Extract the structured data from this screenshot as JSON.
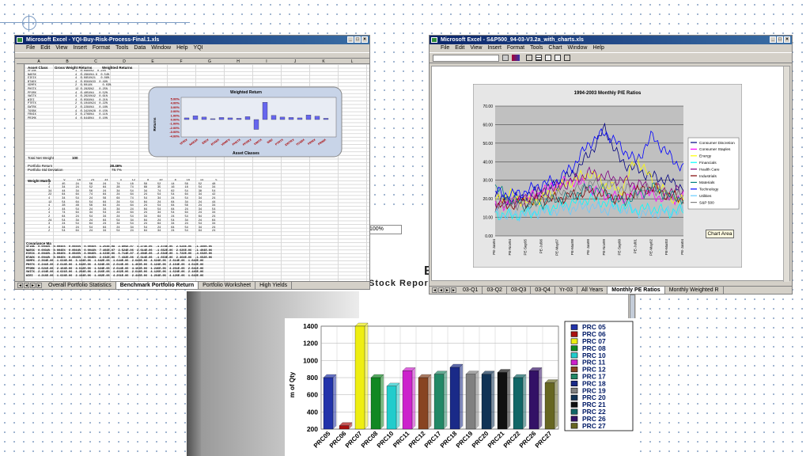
{
  "left_window": {
    "title": "Microsoft Excel - YQI-Buy-Risk-Process-Final.1.xls",
    "menu": [
      "File",
      "Edit",
      "View",
      "Insert",
      "Format",
      "Tools",
      "Data",
      "Window",
      "Help",
      "YQI"
    ],
    "cell_ref": "A",
    "col_headers": [
      "A",
      "B",
      "C",
      "D",
      "E",
      "F",
      "G",
      "H",
      "I",
      "J",
      "K",
      "L"
    ],
    "labels": {
      "asset_class": "Asset Class",
      "gross_weight": "Gross Weight Returns",
      "weighted_returns": "Weighted Returns",
      "total_net_weight": "Total Net Weight",
      "portfolio_return": "Portfolio Return",
      "portfolio_std": "Portfolio Std Deviation",
      "weight_matrix": "Weight Matrix",
      "covariance": "Covariance Ma",
      "total_weight_value": "100",
      "portfolio_return_value": "28.46%",
      "portfolio_std_value": "78.7%"
    },
    "asset_rows": [
      "VFINX",
      "NAESX",
      "EIEIX",
      "BTAEX",
      "VDMFX",
      "PHSTX",
      "PFORX",
      "VWITX",
      "WIEI",
      "PTRTX",
      "EWTRX",
      "TGSBX",
      "FRNIX",
      "PRIMX"
    ],
    "inner_chart": {
      "title": "Weighted Return",
      "xlabel": "Asset Classes",
      "ylabel": "Returns",
      "yticks": [
        "5.00%",
        "4.00%",
        "3.00%",
        "2.00%",
        "1.00%",
        "0.00%",
        "-1.00%",
        "-2.00%",
        "-3.00%",
        "-4.00%"
      ]
    },
    "tabs": [
      "Overall Portfolio Statistics",
      "Benchmark Portfolio Return",
      "Portfolio Worksheet",
      "High Yields"
    ],
    "active_tab": "Benchmark Portfolio Return"
  },
  "right_window": {
    "title": "Microsoft Excel - S&P500_94-03-V3.2a_with_charts.xls",
    "menu": [
      "File",
      "Edit",
      "View",
      "Insert",
      "Format",
      "Tools",
      "Chart",
      "Window",
      "Help"
    ],
    "zoom": "100%",
    "chart_area_button": "Chart Area",
    "tabs": [
      "03-Q1",
      "03-Q2",
      "03-Q3",
      "03-Q4",
      "Yr-03",
      "All Years",
      "Monthly PE Ratios",
      "Monthly Weighted R"
    ],
    "active_tab": "Monthly PE Ratios"
  },
  "background_text": {
    "stock_report": "Stock Report",
    "big_letter": "E"
  },
  "chart_data": [
    {
      "type": "line",
      "title": "1994-2003 Monthly P/E Ratios",
      "yticks": [
        "70.00",
        "60.00",
        "50.00",
        "40.00",
        "30.00",
        "20.00",
        "10.00",
        "0.00"
      ],
      "ylim": [
        0,
        70
      ],
      "x": [
        "PE-Jan94",
        "PE-Nov94",
        "PE-Sep95",
        "PE-Jul96",
        "PE-May97",
        "PE-Mar98",
        "PE-Jan99",
        "PE-Nov99",
        "PE-Sep00",
        "PE-Jul01",
        "PE-May02",
        "PE-Mar03",
        "PE-Jan04"
      ],
      "series": [
        {
          "name": "Consumer Discretion",
          "color": "#000080",
          "values": [
            21,
            19,
            22,
            24,
            28,
            34,
            44,
            58,
            40,
            36,
            32,
            30,
            26
          ]
        },
        {
          "name": "Consumer Staples",
          "color": "#ff00ff",
          "values": [
            16,
            18,
            20,
            24,
            28,
            30,
            26,
            22,
            20,
            24,
            22,
            20,
            21
          ]
        },
        {
          "name": "Energy",
          "color": "#ffff00",
          "values": [
            20,
            22,
            18,
            20,
            26,
            30,
            34,
            28,
            24,
            42,
            30,
            22,
            18
          ]
        },
        {
          "name": "Financials",
          "color": "#00ffff",
          "values": [
            12,
            11,
            12,
            14,
            16,
            18,
            20,
            18,
            16,
            14,
            15,
            13,
            14
          ]
        },
        {
          "name": "Health Care",
          "color": "#800080",
          "values": [
            18,
            18,
            20,
            24,
            26,
            30,
            34,
            32,
            30,
            28,
            26,
            24,
            24
          ]
        },
        {
          "name": "Industrials",
          "color": "#800000",
          "values": [
            16,
            17,
            18,
            20,
            20,
            22,
            24,
            22,
            20,
            24,
            26,
            22,
            20
          ]
        },
        {
          "name": "Materials",
          "color": "#008080",
          "values": [
            26,
            20,
            16,
            18,
            20,
            22,
            26,
            24,
            18,
            22,
            26,
            22,
            20
          ]
        },
        {
          "name": "Technology",
          "color": "#0000ff",
          "values": [
            24,
            22,
            24,
            28,
            30,
            38,
            50,
            56,
            48,
            40,
            54,
            44,
            36
          ]
        },
        {
          "name": "Utilities",
          "color": "#66ccff",
          "values": [
            12,
            11,
            12,
            13,
            14,
            15,
            16,
            14,
            15,
            13,
            12,
            13,
            14
          ]
        },
        {
          "name": "S&P 500",
          "color": "#808080",
          "values": [
            18,
            17,
            18,
            20,
            22,
            24,
            28,
            28,
            26,
            24,
            26,
            22,
            21
          ]
        }
      ],
      "legend": "right"
    },
    {
      "type": "bar",
      "title": "",
      "ylabel": "m of Qty",
      "ylim": [
        200,
        1400
      ],
      "yticks": [
        "1400",
        "1200",
        "1000",
        "800",
        "600",
        "400",
        "200"
      ],
      "categories": [
        "PRC05",
        "PRC06",
        "PRC07",
        "PRC08",
        "PRC10",
        "PRC11",
        "PRC12",
        "PRC17",
        "PRC18",
        "PRC19",
        "PRC20",
        "PRC21",
        "PRC22",
        "PRC26",
        "PRC27"
      ],
      "values": [
        800,
        240,
        1400,
        800,
        700,
        880,
        800,
        840,
        920,
        840,
        840,
        860,
        800,
        880,
        740
      ],
      "colors": [
        "#2233aa",
        "#aa1111",
        "#eeee11",
        "#118822",
        "#22cccc",
        "#cc22cc",
        "#884422",
        "#228866",
        "#1a2a88",
        "#808080",
        "#113355",
        "#111111",
        "#116666",
        "#331166",
        "#666622"
      ],
      "legend": [
        "PRC 05",
        "PRC 06",
        "PRC 07",
        "PRC 08",
        "PRC 10",
        "PRC 11",
        "PRC 12",
        "PRC 17",
        "PRC 18",
        "PRC 19",
        "PRC 20",
        "PRC 21",
        "PRC 22",
        "PRC 26",
        "PRC 27"
      ],
      "legend_position": "right"
    }
  ]
}
